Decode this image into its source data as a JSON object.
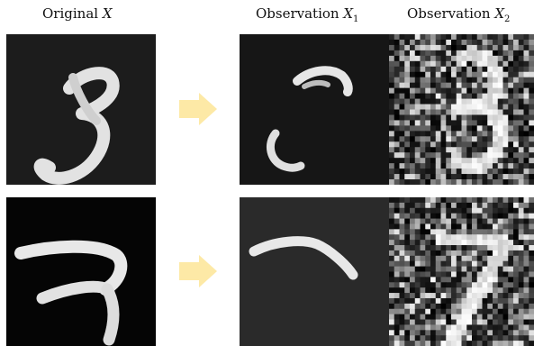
{
  "header": {
    "original": {
      "text": "Original ",
      "var": "X"
    },
    "obs1": {
      "text": "Observation ",
      "var": "X",
      "sub": "1"
    },
    "obs2": {
      "text": "Observation ",
      "var": "X",
      "sub": "2"
    }
  },
  "rows": [
    {
      "digit": "3"
    },
    {
      "digit": "7"
    }
  ],
  "colors": {
    "arrow": "#fde9a6",
    "panel_dark": "#1c1c1c",
    "panel_black": "#050505",
    "panel_gray": "#2a2a2a",
    "stroke": "#e6e6e6"
  }
}
